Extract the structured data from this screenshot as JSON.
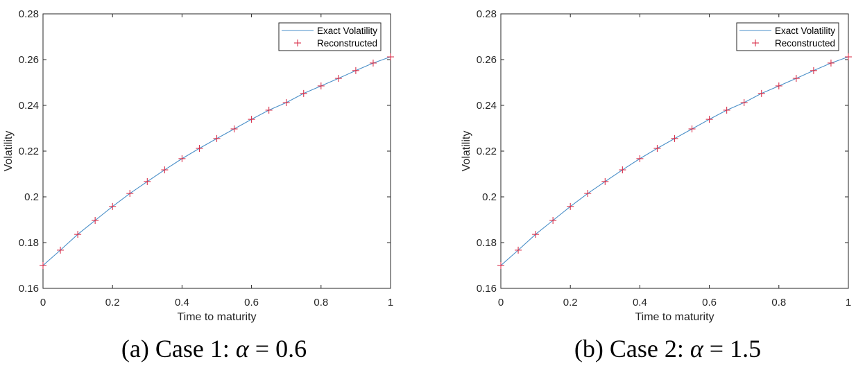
{
  "chart_data": [
    {
      "type": "line",
      "panel": "a",
      "caption": "(a) Case 1: α = 0.6",
      "caption_parts": {
        "prefix": "(a) Case 1: ",
        "symbol": "α",
        "rest": " = 0.6"
      },
      "xlabel": "Time to maturity",
      "ylabel": "Volatility",
      "xlim": [
        0,
        1
      ],
      "ylim": [
        0.16,
        0.28
      ],
      "xticks": [
        "0",
        "0.2",
        "0.4",
        "0.6",
        "0.8",
        "1"
      ],
      "yticks": [
        "0.16",
        "0.18",
        "0.2",
        "0.22",
        "0.24",
        "0.26",
        "0.28"
      ],
      "grid": false,
      "legend_position": "upper right",
      "series": [
        {
          "name": "Exact Volatility",
          "style": "line",
          "color": "#0072BD",
          "x": [
            0,
            0.05,
            0.1,
            0.15,
            0.2,
            0.25,
            0.3,
            0.35,
            0.4,
            0.45,
            0.5,
            0.55,
            0.6,
            0.65,
            0.7,
            0.75,
            0.8,
            0.85,
            0.9,
            0.95,
            1.0
          ],
          "values": [
            0.17,
            0.1767,
            0.1836,
            0.1897,
            0.1958,
            0.2015,
            0.2067,
            0.2118,
            0.2167,
            0.2212,
            0.2255,
            0.2297,
            0.2339,
            0.2379,
            0.2412,
            0.2452,
            0.2485,
            0.2518,
            0.2552,
            0.2585,
            0.2612
          ]
        },
        {
          "name": "Reconstructed",
          "style": "marker-plus",
          "color": "#D62728",
          "x": [
            0,
            0.05,
            0.1,
            0.15,
            0.2,
            0.25,
            0.3,
            0.35,
            0.4,
            0.45,
            0.5,
            0.55,
            0.6,
            0.65,
            0.7,
            0.75,
            0.8,
            0.85,
            0.9,
            0.95,
            1.0
          ],
          "values": [
            0.17,
            0.1767,
            0.1836,
            0.1897,
            0.1958,
            0.2015,
            0.2067,
            0.2118,
            0.2167,
            0.2212,
            0.2255,
            0.2297,
            0.2339,
            0.2379,
            0.2412,
            0.2452,
            0.2485,
            0.2518,
            0.2552,
            0.2585,
            0.2612
          ]
        }
      ]
    },
    {
      "type": "line",
      "panel": "b",
      "caption": "(b) Case 2: α = 1.5",
      "caption_parts": {
        "prefix": "(b) Case 2: ",
        "symbol": "α",
        "rest": " = 1.5"
      },
      "xlabel": "Time to maturity",
      "ylabel": "Volatility",
      "xlim": [
        0,
        1
      ],
      "ylim": [
        0.16,
        0.28
      ],
      "xticks": [
        "0",
        "0.2",
        "0.4",
        "0.6",
        "0.8",
        "1"
      ],
      "yticks": [
        "0.16",
        "0.18",
        "0.2",
        "0.22",
        "0.24",
        "0.26",
        "0.28"
      ],
      "grid": false,
      "legend_position": "upper right",
      "series": [
        {
          "name": "Exact Volatility",
          "style": "line",
          "color": "#0072BD",
          "x": [
            0,
            0.05,
            0.1,
            0.15,
            0.2,
            0.25,
            0.3,
            0.35,
            0.4,
            0.45,
            0.5,
            0.55,
            0.6,
            0.65,
            0.7,
            0.75,
            0.8,
            0.85,
            0.9,
            0.95,
            1.0
          ],
          "values": [
            0.17,
            0.1767,
            0.1836,
            0.1897,
            0.1958,
            0.2015,
            0.2067,
            0.2118,
            0.2167,
            0.2212,
            0.2255,
            0.2297,
            0.2339,
            0.2379,
            0.2412,
            0.2452,
            0.2485,
            0.2518,
            0.2552,
            0.2585,
            0.2612
          ]
        },
        {
          "name": "Reconstructed",
          "style": "marker-plus",
          "color": "#D62728",
          "x": [
            0,
            0.05,
            0.1,
            0.15,
            0.2,
            0.25,
            0.3,
            0.35,
            0.4,
            0.45,
            0.5,
            0.55,
            0.6,
            0.65,
            0.7,
            0.75,
            0.8,
            0.85,
            0.9,
            0.95,
            1.0
          ],
          "values": [
            0.17,
            0.1767,
            0.1836,
            0.1897,
            0.1958,
            0.2015,
            0.2067,
            0.2118,
            0.2167,
            0.2212,
            0.2255,
            0.2297,
            0.2339,
            0.2379,
            0.2412,
            0.2452,
            0.2485,
            0.2518,
            0.2552,
            0.2585,
            0.2612
          ]
        }
      ]
    }
  ],
  "colors": {
    "axis": "#262626",
    "exact_line": "#4a8fc8",
    "marker": "#d9304a"
  }
}
